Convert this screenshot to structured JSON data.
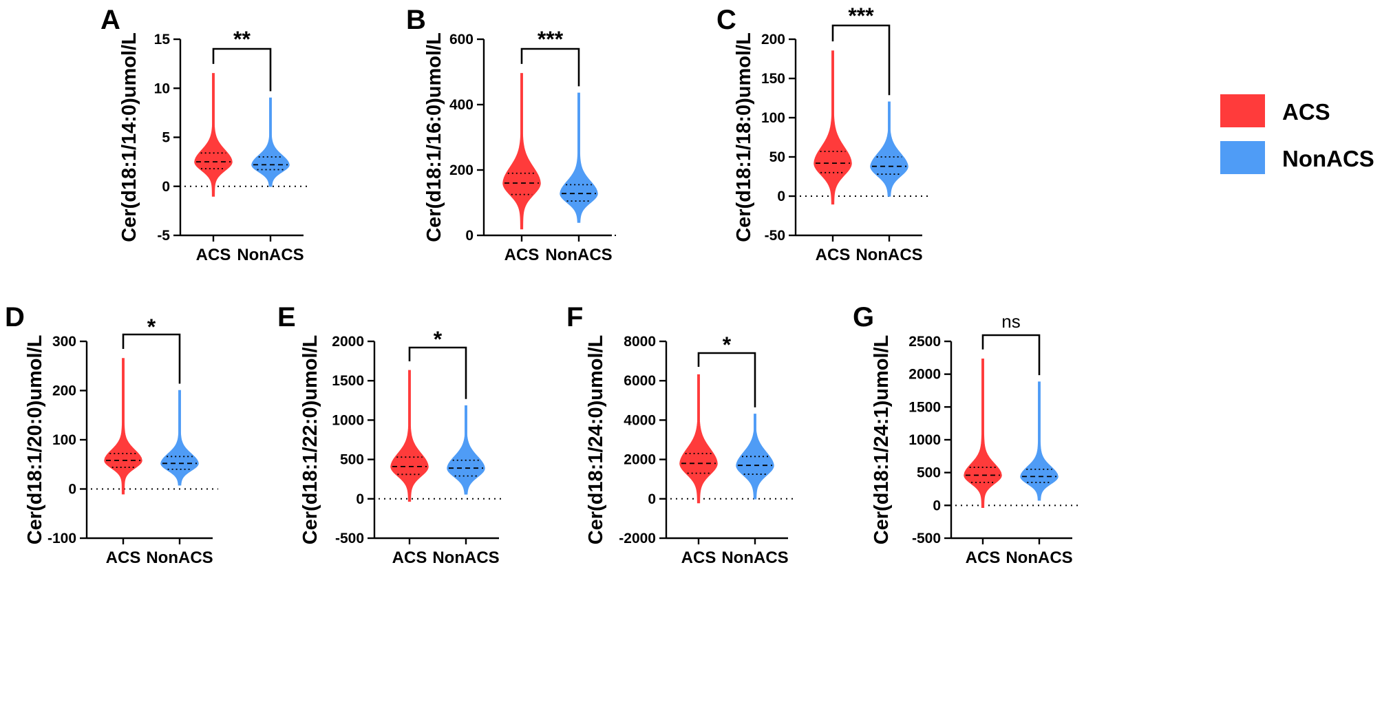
{
  "colors": {
    "ACS": "#ff3b3b",
    "NonACS": "#4f9cf6"
  },
  "legend": [
    {
      "key": "ACS",
      "label": "ACS"
    },
    {
      "key": "NonACS",
      "label": "NonACS"
    }
  ],
  "chart_data": [
    {
      "type": "violin",
      "panel": "A",
      "ylabel": "Cer(d18:1/14:0)umol/L",
      "categories": [
        "ACS",
        "NonACS"
      ],
      "ylim": [
        -5,
        15
      ],
      "yticks": [
        -5,
        0,
        5,
        10,
        15
      ],
      "series": [
        {
          "name": "ACS",
          "min": -1,
          "q1": 1.8,
          "median": 2.5,
          "q3": 3.4,
          "max": 11.5
        },
        {
          "name": "NonACS",
          "min": 0,
          "q1": 1.7,
          "median": 2.2,
          "q3": 3.0,
          "max": 9.0
        }
      ],
      "significance": "**"
    },
    {
      "type": "violin",
      "panel": "B",
      "ylabel": "Cer(d18:1/16:0)umol/L",
      "categories": [
        "ACS",
        "NonACS"
      ],
      "ylim": [
        0,
        600
      ],
      "yticks": [
        0,
        200,
        400,
        600
      ],
      "series": [
        {
          "name": "ACS",
          "min": 20,
          "q1": 125,
          "median": 160,
          "q3": 190,
          "max": 495
        },
        {
          "name": "NonACS",
          "min": 40,
          "q1": 105,
          "median": 128,
          "q3": 155,
          "max": 435
        }
      ],
      "significance": "***"
    },
    {
      "type": "violin",
      "panel": "C",
      "ylabel": "Cer(d18:1/18:0)umol/L",
      "categories": [
        "ACS",
        "NonACS"
      ],
      "ylim": [
        -50,
        200
      ],
      "yticks": [
        -50,
        0,
        50,
        100,
        150,
        200
      ],
      "series": [
        {
          "name": "ACS",
          "min": -10,
          "q1": 30,
          "median": 42,
          "q3": 57,
          "max": 185
        },
        {
          "name": "NonACS",
          "min": 0,
          "q1": 28,
          "median": 38,
          "q3": 50,
          "max": 120
        }
      ],
      "significance": "***"
    },
    {
      "type": "violin",
      "panel": "D",
      "ylabel": "Cer(d18:1/20:0)umol/L",
      "categories": [
        "ACS",
        "NonACS"
      ],
      "ylim": [
        -100,
        300
      ],
      "yticks": [
        -100,
        0,
        100,
        200,
        300
      ],
      "series": [
        {
          "name": "ACS",
          "min": -10,
          "q1": 44,
          "median": 58,
          "q3": 72,
          "max": 265
        },
        {
          "name": "NonACS",
          "min": 8,
          "q1": 40,
          "median": 52,
          "q3": 66,
          "max": 200
        }
      ],
      "significance": "*"
    },
    {
      "type": "violin",
      "panel": "E",
      "ylabel": "Cer(d18:1/22:0)umol/L",
      "categories": [
        "ACS",
        "NonACS"
      ],
      "ylim": [
        -500,
        2000
      ],
      "yticks": [
        -500,
        0,
        500,
        1000,
        1500,
        2000
      ],
      "series": [
        {
          "name": "ACS",
          "min": -30,
          "q1": 310,
          "median": 410,
          "q3": 530,
          "max": 1630
        },
        {
          "name": "NonACS",
          "min": 60,
          "q1": 290,
          "median": 390,
          "q3": 490,
          "max": 1180
        }
      ],
      "significance": "*"
    },
    {
      "type": "violin",
      "panel": "F",
      "ylabel": "Cer(d18:1/24:0)umol/L",
      "categories": [
        "ACS",
        "NonACS"
      ],
      "ylim": [
        -2000,
        8000
      ],
      "yticks": [
        -2000,
        0,
        2000,
        4000,
        6000,
        8000
      ],
      "series": [
        {
          "name": "ACS",
          "min": -200,
          "q1": 1300,
          "median": 1800,
          "q3": 2300,
          "max": 6300
        },
        {
          "name": "NonACS",
          "min": 0,
          "q1": 1250,
          "median": 1700,
          "q3": 2150,
          "max": 4300
        }
      ],
      "significance": "*"
    },
    {
      "type": "violin",
      "panel": "G",
      "ylabel": "Cer(d18:1/24:1)umol/L",
      "categories": [
        "ACS",
        "NonACS"
      ],
      "ylim": [
        -500,
        2500
      ],
      "yticks": [
        -500,
        0,
        500,
        1000,
        1500,
        2000,
        2500
      ],
      "series": [
        {
          "name": "ACS",
          "min": -30,
          "q1": 350,
          "median": 460,
          "q3": 580,
          "max": 2230
        },
        {
          "name": "NonACS",
          "min": 80,
          "q1": 350,
          "median": 440,
          "q3": 550,
          "max": 1880
        }
      ],
      "significance": "ns"
    }
  ]
}
